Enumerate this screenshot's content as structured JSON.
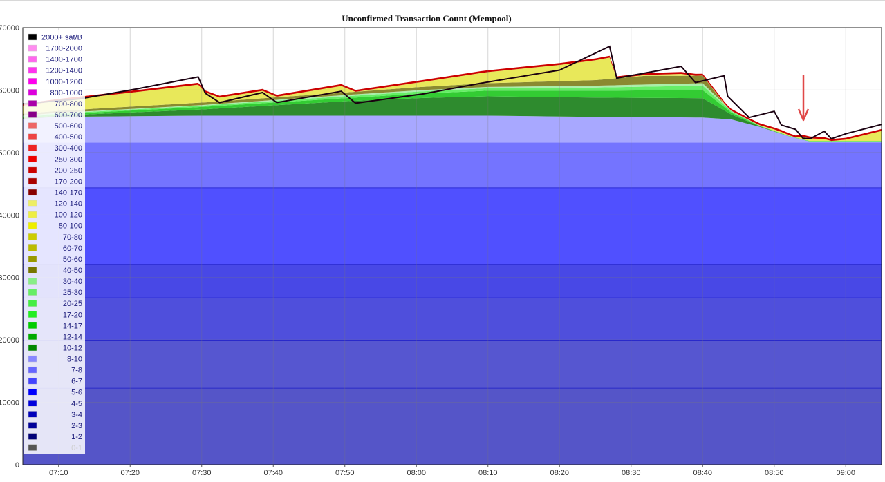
{
  "chart_data": {
    "type": "area",
    "stacked": true,
    "title": "Unconfirmed Transaction Count (Mempool)",
    "xlabel": "",
    "ylabel": "",
    "ylim": [
      0,
      70000
    ],
    "ytick_labels": [
      "0",
      "10000",
      "20000",
      "30000",
      "40000",
      "50000",
      "60000",
      "70000"
    ],
    "ytick_values": [
      0,
      10000,
      20000,
      30000,
      40000,
      50000,
      60000,
      70000
    ],
    "x_range_minutes": [
      425,
      545
    ],
    "xtick_labels": [
      "07:10",
      "07:20",
      "07:30",
      "07:40",
      "07:50",
      "08:00",
      "08:10",
      "08:20",
      "08:30",
      "08:40",
      "08:50",
      "09:00"
    ],
    "xtick_values": [
      430,
      440,
      450,
      460,
      470,
      480,
      490,
      500,
      510,
      520,
      530,
      540
    ],
    "grid": true,
    "legend_position": "left",
    "legend": [
      {
        "label": "2000+ sat/B",
        "color": "#000000"
      },
      {
        "label": "1700-2000",
        "color": "#ff8cf0"
      },
      {
        "label": "1400-1700",
        "color": "#ff66ee"
      },
      {
        "label": "1200-1400",
        "color": "#ff33ee"
      },
      {
        "label": "1000-1200",
        "color": "#ff00ee"
      },
      {
        "label": "800-1000",
        "color": "#dd00dd"
      },
      {
        "label": "700-800",
        "color": "#aa00aa"
      },
      {
        "label": "600-700",
        "color": "#880088"
      },
      {
        "label": "500-600",
        "color": "#ee6666"
      },
      {
        "label": "400-500",
        "color": "#ee4444"
      },
      {
        "label": "300-400",
        "color": "#ee2222"
      },
      {
        "label": "250-300",
        "color": "#ee0000"
      },
      {
        "label": "200-250",
        "color": "#cc0000"
      },
      {
        "label": "170-200",
        "color": "#aa0000"
      },
      {
        "label": "140-170",
        "color": "#880000"
      },
      {
        "label": "120-140",
        "color": "#eeee66"
      },
      {
        "label": "100-120",
        "color": "#eeee44"
      },
      {
        "label": "80-100",
        "color": "#eeee00"
      },
      {
        "label": "70-80",
        "color": "#cccc00"
      },
      {
        "label": "60-70",
        "color": "#bbbb00"
      },
      {
        "label": "50-60",
        "color": "#999900"
      },
      {
        "label": "40-50",
        "color": "#777700"
      },
      {
        "label": "30-40",
        "color": "#88ee88"
      },
      {
        "label": "25-30",
        "color": "#66ee66"
      },
      {
        "label": "20-25",
        "color": "#44ee44"
      },
      {
        "label": "17-20",
        "color": "#22ee22"
      },
      {
        "label": "14-17",
        "color": "#00cc00"
      },
      {
        "label": "12-14",
        "color": "#00aa00"
      },
      {
        "label": "10-12",
        "color": "#008800"
      },
      {
        "label": "8-10",
        "color": "#8888ff"
      },
      {
        "label": "7-8",
        "color": "#6666ff"
      },
      {
        "label": "6-7",
        "color": "#4444ff"
      },
      {
        "label": "5-6",
        "color": "#0000ff"
      },
      {
        "label": "4-5",
        "color": "#0000dd"
      },
      {
        "label": "3-4",
        "color": "#0000bb"
      },
      {
        "label": "2-3",
        "color": "#000099"
      },
      {
        "label": "1-2",
        "color": "#000077"
      },
      {
        "label": "0-1",
        "color": "#555555"
      }
    ],
    "series": [
      {
        "name": "0-1",
        "color": "#5555c8",
        "x": [
          425,
          545
        ],
        "values": [
          12300,
          12300
        ]
      },
      {
        "name": "1-2",
        "color": "#5656d0",
        "x": [
          425,
          545
        ],
        "values": [
          7600,
          7600
        ]
      },
      {
        "name": "2-3",
        "color": "#4f4fdc",
        "x": [
          425,
          545
        ],
        "values": [
          6900,
          6900
        ]
      },
      {
        "name": "3-4",
        "color": "#4848e6",
        "x": [
          425,
          545
        ],
        "values": [
          5300,
          5300
        ]
      },
      {
        "name": "4-5",
        "color": "#5050ff",
        "x": [
          425,
          545
        ],
        "values": [
          12300,
          12300
        ]
      },
      {
        "name": "5-6",
        "color": "#7474ff",
        "x": [
          425,
          527,
          531,
          537,
          545
        ],
        "values": [
          7200,
          7200,
          7200,
          7200,
          7200
        ]
      },
      {
        "name": "6-7",
        "color": "#a8a8ff",
        "x": [
          425,
          430,
          450,
          470,
          490,
          505,
          520,
          524,
          528,
          532,
          535,
          545
        ],
        "values": [
          3800,
          4100,
          4300,
          4300,
          4300,
          4100,
          4000,
          3700,
          2500,
          1000,
          150,
          150
        ]
      },
      {
        "name": "10-12",
        "color": "#2e8b2e",
        "x": [
          425,
          430,
          450,
          470,
          480,
          490,
          505,
          520,
          524,
          528,
          532,
          535,
          545
        ],
        "values": [
          100,
          200,
          1000,
          2300,
          2800,
          3100,
          3100,
          3100,
          800,
          100,
          0,
          0,
          0
        ]
      },
      {
        "name": "12-14",
        "color": "#33cc33",
        "x": [
          425,
          450,
          470,
          490,
          505,
          520,
          524,
          528,
          545
        ],
        "values": [
          200,
          400,
          500,
          900,
          1100,
          1300,
          300,
          50,
          50
        ]
      },
      {
        "name": "14-17",
        "color": "#66ee66",
        "x": [
          425,
          450,
          470,
          490,
          505,
          520,
          524,
          528,
          545
        ],
        "values": [
          100,
          200,
          300,
          400,
          500,
          700,
          200,
          50,
          50
        ]
      },
      {
        "name": "17-20",
        "color": "#aaeeaa",
        "x": [
          425,
          450,
          470,
          490,
          505,
          520,
          524,
          528,
          545
        ],
        "values": [
          100,
          100,
          200,
          200,
          300,
          400,
          100,
          0,
          0
        ]
      },
      {
        "name": "50-60",
        "color": "#8a8a30",
        "x": [
          425,
          450,
          470,
          490,
          505,
          512,
          520,
          523,
          526,
          531,
          535,
          545
        ],
        "values": [
          300,
          400,
          400,
          600,
          900,
          1400,
          1200,
          0,
          0,
          0,
          0,
          0
        ]
      },
      {
        "name": "80-100",
        "color": "#e8e85a",
        "x": [
          425,
          433,
          441,
          449.5,
          450.5,
          452.5,
          458.5,
          460.5,
          469.5,
          471.5,
          481,
          489,
          500,
          507,
          508,
          517,
          519,
          523,
          523.5,
          526.5,
          530,
          531,
          533,
          534,
          535,
          537,
          538,
          540,
          545
        ],
        "values": [
          1300,
          1800,
          2300,
          2900,
          1600,
          600,
          1200,
          100,
          1100,
          0,
          800,
          1700,
          2600,
          3400,
          0,
          300,
          0,
          100,
          0,
          0,
          200,
          200,
          0,
          400,
          400,
          300,
          0,
          200,
          1600
        ]
      },
      {
        "name": "200-250",
        "color": "#cc0000",
        "x": [
          425,
          545
        ],
        "values": [
          300,
          300
        ]
      }
    ],
    "total": {
      "x": [
        425,
        433,
        441,
        449.5,
        450.5,
        452.5,
        458.5,
        460.5,
        469.5,
        471.5,
        481,
        489,
        500,
        507,
        508,
        517,
        519,
        523,
        523.5,
        526.5,
        530,
        531,
        533,
        534,
        535,
        537,
        538,
        540,
        545
      ],
      "values": [
        57800,
        58600,
        60200,
        62100,
        59500,
        58000,
        59600,
        58000,
        59800,
        57900,
        59400,
        61100,
        63200,
        67000,
        61900,
        63800,
        61200,
        62300,
        59000,
        55600,
        56600,
        54400,
        53700,
        52300,
        52200,
        53400,
        52200,
        53000,
        54500
      ]
    }
  }
}
